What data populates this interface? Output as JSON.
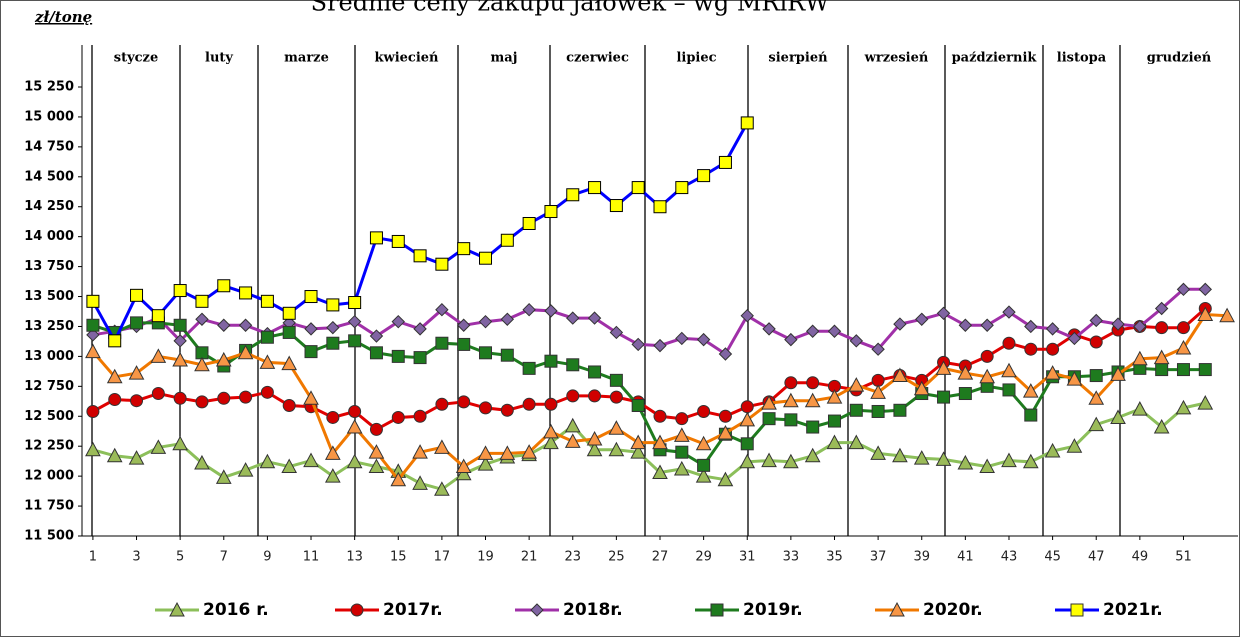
{
  "chart_data": {
    "type": "line",
    "title": "Średnie ceny zakupu jałówek – wg MRiRW",
    "y_label": "zł/tonę",
    "months": [
      "stycze",
      "luty",
      "marze",
      "kwiecień",
      "maj",
      "czerwiec",
      "lipiec",
      "sierpień",
      "wrzesień",
      "październik",
      "listopa",
      "grudzień"
    ],
    "x": [
      1,
      2,
      3,
      4,
      5,
      6,
      7,
      8,
      9,
      10,
      11,
      12,
      13,
      14,
      15,
      16,
      17,
      18,
      19,
      20,
      21,
      22,
      23,
      24,
      25,
      26,
      27,
      28,
      29,
      30,
      31,
      32,
      33,
      34,
      35,
      36,
      37,
      38,
      39,
      40,
      41,
      42,
      43,
      44,
      45,
      46,
      47,
      48,
      49,
      50,
      51,
      52,
      53
    ],
    "xlim": [
      0.5,
      53.5
    ],
    "xticks": [
      1,
      3,
      5,
      7,
      9,
      11,
      13,
      15,
      17,
      19,
      21,
      23,
      25,
      27,
      29,
      31,
      33,
      35,
      37,
      39,
      41,
      43,
      45,
      47,
      49,
      51
    ],
    "ylim": [
      11500,
      15250
    ],
    "yticks": [
      {
        "value": 11500,
        "label": "11 500"
      },
      {
        "value": 11750,
        "label": "11 750"
      },
      {
        "value": 12000,
        "label": "12 000"
      },
      {
        "value": 12250,
        "label": "12 250"
      },
      {
        "value": 12500,
        "label": "12 500"
      },
      {
        "value": 12750,
        "label": "12 750"
      },
      {
        "value": 13000,
        "label": "13 000"
      },
      {
        "value": 13250,
        "label": "13 250"
      },
      {
        "value": 13500,
        "label": "13 500"
      },
      {
        "value": 13750,
        "label": "13 750"
      },
      {
        "value": 14000,
        "label": "14 000"
      },
      {
        "value": 14250,
        "label": "14 250"
      },
      {
        "value": 14500,
        "label": "14 500"
      },
      {
        "value": 14750,
        "label": "14 750"
      },
      {
        "value": 15000,
        "label": "15 000"
      },
      {
        "value": 15250,
        "label": "15 250"
      }
    ],
    "series": [
      {
        "name": "2016 r.",
        "color": "#8cbf5a",
        "marker": "triangle",
        "marker_fill": "#9bbb59",
        "values": [
          12220,
          12170,
          12150,
          12240,
          12270,
          12110,
          11990,
          12050,
          12120,
          12080,
          12130,
          12000,
          12120,
          12080,
          12040,
          11940,
          11890,
          12020,
          12100,
          12160,
          12180,
          12280,
          12420,
          12220,
          12220,
          12200,
          12030,
          12060,
          12000,
          11970,
          12120,
          12130,
          12120,
          12170,
          12280,
          12280,
          12190,
          12170,
          12150,
          12140,
          12110,
          12080,
          12130,
          12120,
          12210,
          12250,
          12430,
          12490,
          12560,
          12410,
          12570,
          12610,
          null
        ]
      },
      {
        "name": "2017r.",
        "color": "#e00000",
        "marker": "circle",
        "marker_fill": "#d00000",
        "values": [
          12540,
          12640,
          12630,
          12690,
          12650,
          12620,
          12650,
          12660,
          12700,
          12590,
          12580,
          12490,
          12540,
          12390,
          12490,
          12500,
          12600,
          12620,
          12570,
          12550,
          12600,
          12600,
          12670,
          12670,
          12660,
          12620,
          12500,
          12480,
          12540,
          12500,
          12580,
          12620,
          12780,
          12780,
          12750,
          12720,
          12800,
          12840,
          12800,
          12950,
          12920,
          13000,
          13110,
          13060,
          13060,
          13180,
          13120,
          13220,
          13250,
          13240,
          13240,
          13400,
          null
        ]
      },
      {
        "name": "2018r.",
        "color": "#a030a8",
        "marker": "diamond",
        "marker_fill": "#8064a2",
        "values": [
          13180,
          13210,
          13250,
          13320,
          13130,
          13310,
          13260,
          13260,
          13190,
          13280,
          13230,
          13240,
          13290,
          13170,
          13290,
          13230,
          13390,
          13260,
          13290,
          13310,
          13390,
          13380,
          13320,
          13320,
          13200,
          13100,
          13090,
          13150,
          13140,
          13020,
          13340,
          13230,
          13140,
          13210,
          13210,
          13130,
          13060,
          13270,
          13310,
          13360,
          13260,
          13260,
          13370,
          13250,
          13230,
          13150,
          13300,
          13270,
          13250,
          13400,
          13560,
          13560,
          null
        ]
      },
      {
        "name": "2019r.",
        "color": "#1e7b1e",
        "marker": "square",
        "marker_fill": "#1e7b1e",
        "values": [
          13260,
          13200,
          13280,
          13280,
          13260,
          13030,
          12920,
          13050,
          13160,
          13200,
          13040,
          13110,
          13130,
          13030,
          13000,
          12990,
          13110,
          13100,
          13030,
          13010,
          12900,
          12960,
          12930,
          12870,
          12800,
          12590,
          12220,
          12200,
          12090,
          12350,
          12270,
          12480,
          12470,
          12410,
          12460,
          12550,
          12540,
          12550,
          12690,
          12660,
          12690,
          12750,
          12720,
          12510,
          12830,
          12830,
          12840,
          12870,
          12900,
          12890,
          12890,
          12890,
          null
        ]
      },
      {
        "name": "2020r.",
        "color": "#f07800",
        "marker": "triangle",
        "marker_fill": "#f79646",
        "values": [
          13040,
          12830,
          12860,
          13000,
          12970,
          12930,
          12970,
          13030,
          12950,
          12940,
          12650,
          12190,
          12410,
          12200,
          11970,
          12200,
          12240,
          12080,
          12190,
          12190,
          12200,
          12370,
          12290,
          12310,
          12400,
          12280,
          12280,
          12340,
          12270,
          12360,
          12470,
          12610,
          12630,
          12630,
          12660,
          12760,
          12700,
          12840,
          12730,
          12900,
          12860,
          12830,
          12880,
          12710,
          12860,
          12810,
          12650,
          12850,
          12980,
          12990,
          13070,
          13350,
          13340
        ]
      },
      {
        "name": "2021r.",
        "color": "#0000ff",
        "marker": "square",
        "marker_fill": "#ffff00",
        "values": [
          13460,
          13130,
          13510,
          13340,
          13550,
          13460,
          13590,
          13530,
          13460,
          13360,
          13500,
          13430,
          13450,
          13990,
          13960,
          13840,
          13770,
          13900,
          13820,
          13970,
          14110,
          14210,
          14350,
          14410,
          14260,
          14410,
          14250,
          14410,
          14510,
          14620,
          14950,
          null,
          null,
          null,
          null,
          null,
          null,
          null,
          null,
          null,
          null,
          null,
          null,
          null,
          null,
          null,
          null,
          null,
          null,
          null,
          null,
          null,
          null
        ]
      }
    ]
  }
}
